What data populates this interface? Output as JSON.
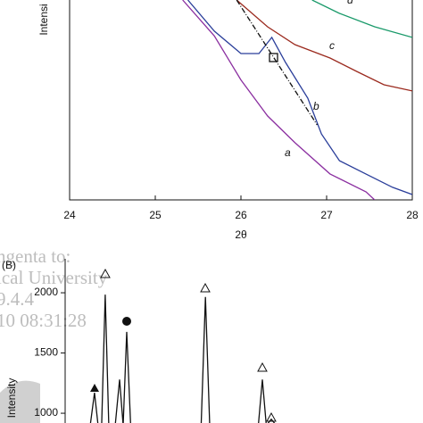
{
  "chart_data": [
    {
      "type": "line",
      "x_label": "2θ",
      "y_label": "Intensi",
      "xlim": [
        24,
        28
      ],
      "xticks": [
        24,
        25,
        26,
        27,
        28
      ],
      "ylim": [
        0,
        100
      ],
      "series": [
        {
          "name": "a",
          "color": "#8b2fa0",
          "x": [
            25.32,
            25.69,
            26.0,
            26.31,
            26.63,
            27.04,
            27.46,
            27.56
          ],
          "values": [
            100,
            82,
            60,
            42,
            28.6,
            13,
            4,
            0
          ]
        },
        {
          "name": "b",
          "color": "#2a3e9a",
          "x": [
            25.38,
            25.69,
            26.0,
            26.21,
            26.36,
            26.52,
            26.78,
            26.94,
            27.15,
            27.46,
            27.77,
            28.0
          ],
          "values": [
            100,
            84.4,
            73.2,
            73.2,
            81.3,
            68.8,
            50.9,
            33,
            19.6,
            12.9,
            6.3,
            2.7
          ]
        },
        {
          "name": "c",
          "color": "#9b2a1e",
          "x": [
            25.95,
            26.31,
            26.63,
            27.04,
            27.35,
            27.67,
            28.0
          ],
          "values": [
            100,
            86.6,
            77.7,
            71,
            64.3,
            57.6,
            54.5
          ]
        },
        {
          "name": "d",
          "color": "#1a9a6a",
          "x": [
            26.83,
            27.15,
            27.56,
            28.0
          ],
          "values": [
            100,
            93.3,
            86.6,
            81.3
          ]
        }
      ],
      "reference_line": {
        "x": [
          25.95,
          26.89
        ],
        "values": [
          100,
          37.5
        ]
      }
    },
    {
      "type": "line",
      "panel_label": "(B)",
      "y_label": "Intensity",
      "xlim": [
        0,
        100
      ],
      "ylim": [
        919,
        2319
      ],
      "yticks": [
        1000,
        1500,
        2000
      ],
      "series": [
        {
          "color": "#111111",
          "x": [
            0,
            7,
            8.2,
            9.2,
            10.2,
            11.2,
            12.2,
            14,
            15.2,
            16.2,
            17.2,
            18.3,
            38,
            39.2,
            40.4,
            54,
            55.1,
            56.2,
            57.6,
            59,
            100
          ],
          "values": [
            900,
            900,
            1170,
            900,
            900,
            1985,
            900,
            900,
            1280,
            900,
            1675,
            900,
            900,
            1965,
            900,
            900,
            1280,
            900,
            950,
            900,
            900
          ]
        }
      ],
      "watermark": [
        "ngenta to:",
        "ical University",
        "9.4.4",
        "10 08:31:28"
      ]
    }
  ]
}
